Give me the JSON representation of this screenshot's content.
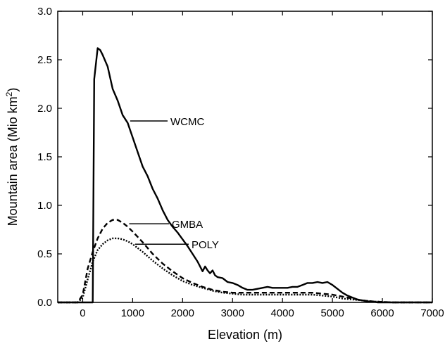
{
  "chart_data": {
    "type": "line",
    "xlabel": "Elevation (m)",
    "ylabel_main": "Mountain area (Mio km",
    "ylabel_sup": "2",
    "ylabel_end": ")",
    "xlim": [
      -500,
      7000
    ],
    "ylim": [
      0,
      3.0
    ],
    "xticks": [
      0,
      1000,
      2000,
      3000,
      4000,
      5000,
      6000,
      7000
    ],
    "xtick_labels": [
      "0",
      "1000",
      "2000",
      "3000",
      "4000",
      "5000",
      "6000",
      "7000"
    ],
    "yticks": [
      0,
      0.5,
      1.0,
      1.5,
      2.0,
      2.5,
      3.0
    ],
    "ytick_labels": [
      "0.0",
      "0.5",
      "1.0",
      "1.5",
      "2.0",
      "2.5",
      "3.0"
    ],
    "grid": false,
    "series": [
      {
        "name": "WCMC",
        "style": "solid",
        "color": "#000000",
        "label_anchor": [
          950,
          1.87
        ],
        "x": [
          -500,
          200,
          230,
          300,
          350,
          400,
          500,
          600,
          700,
          800,
          900,
          1000,
          1100,
          1200,
          1300,
          1400,
          1500,
          1600,
          1700,
          1800,
          1900,
          2000,
          2100,
          2200,
          2300,
          2400,
          2450,
          2500,
          2550,
          2600,
          2650,
          2700,
          2800,
          2900,
          3000,
          3100,
          3200,
          3300,
          3400,
          3500,
          3600,
          3700,
          3800,
          3900,
          4000,
          4100,
          4200,
          4300,
          4400,
          4500,
          4600,
          4700,
          4800,
          4900,
          5000,
          5100,
          5200,
          5300,
          5400,
          5500,
          5600,
          5700,
          5800,
          5900,
          6000,
          6100,
          6200,
          6300,
          6400,
          6500,
          6600,
          6700,
          6800,
          6900,
          7000
        ],
        "values": [
          0,
          0,
          2.3,
          2.62,
          2.6,
          2.55,
          2.43,
          2.2,
          2.08,
          1.93,
          1.85,
          1.7,
          1.55,
          1.4,
          1.3,
          1.17,
          1.07,
          0.95,
          0.85,
          0.78,
          0.72,
          0.65,
          0.58,
          0.5,
          0.42,
          0.32,
          0.37,
          0.33,
          0.3,
          0.33,
          0.28,
          0.26,
          0.25,
          0.21,
          0.2,
          0.18,
          0.15,
          0.13,
          0.13,
          0.14,
          0.15,
          0.16,
          0.15,
          0.15,
          0.15,
          0.15,
          0.16,
          0.16,
          0.18,
          0.2,
          0.2,
          0.21,
          0.2,
          0.21,
          0.18,
          0.14,
          0.1,
          0.07,
          0.05,
          0.03,
          0.02,
          0.01,
          0.01,
          0,
          0,
          0,
          0,
          0,
          0,
          0,
          0,
          0,
          0,
          0,
          0
        ]
      },
      {
        "name": "GMBA",
        "style": "dashed",
        "color": "#000000",
        "label_anchor": [
          930,
          0.81
        ],
        "x": [
          -500,
          -100,
          0,
          100,
          200,
          300,
          400,
          500,
          600,
          700,
          800,
          900,
          1000,
          1200,
          1400,
          1600,
          1800,
          2000,
          2200,
          2400,
          2600,
          2800,
          3000,
          3200,
          3400,
          3600,
          3800,
          4000,
          4200,
          4400,
          4600,
          4800,
          5000,
          5200,
          5400,
          5600,
          5800,
          6000,
          6200,
          6500,
          7000
        ],
        "values": [
          0,
          0,
          0.08,
          0.35,
          0.52,
          0.66,
          0.76,
          0.82,
          0.85,
          0.85,
          0.82,
          0.78,
          0.73,
          0.62,
          0.5,
          0.4,
          0.32,
          0.25,
          0.2,
          0.16,
          0.13,
          0.11,
          0.1,
          0.1,
          0.1,
          0.1,
          0.1,
          0.1,
          0.1,
          0.1,
          0.1,
          0.09,
          0.08,
          0.06,
          0.04,
          0.02,
          0.01,
          0.005,
          0,
          0,
          0
        ]
      },
      {
        "name": "POLY",
        "style": "dotted",
        "color": "#000000",
        "label_anchor": [
          1050,
          0.6
        ],
        "x": [
          -500,
          -100,
          0,
          100,
          200,
          300,
          400,
          500,
          600,
          700,
          800,
          900,
          1000,
          1200,
          1400,
          1600,
          1800,
          2000,
          2200,
          2400,
          2600,
          2800,
          3000,
          3200,
          3400,
          3600,
          3800,
          4000,
          4200,
          4400,
          4600,
          4800,
          5000,
          5200,
          5400,
          5600,
          5800,
          6000,
          6200,
          6500,
          7000
        ],
        "values": [
          0,
          0,
          0.05,
          0.24,
          0.42,
          0.54,
          0.6,
          0.64,
          0.66,
          0.66,
          0.65,
          0.63,
          0.6,
          0.52,
          0.43,
          0.35,
          0.28,
          0.22,
          0.18,
          0.15,
          0.12,
          0.1,
          0.09,
          0.08,
          0.08,
          0.08,
          0.08,
          0.08,
          0.08,
          0.08,
          0.08,
          0.07,
          0.06,
          0.04,
          0.03,
          0.02,
          0.01,
          0.005,
          0,
          0,
          0
        ]
      }
    ]
  }
}
